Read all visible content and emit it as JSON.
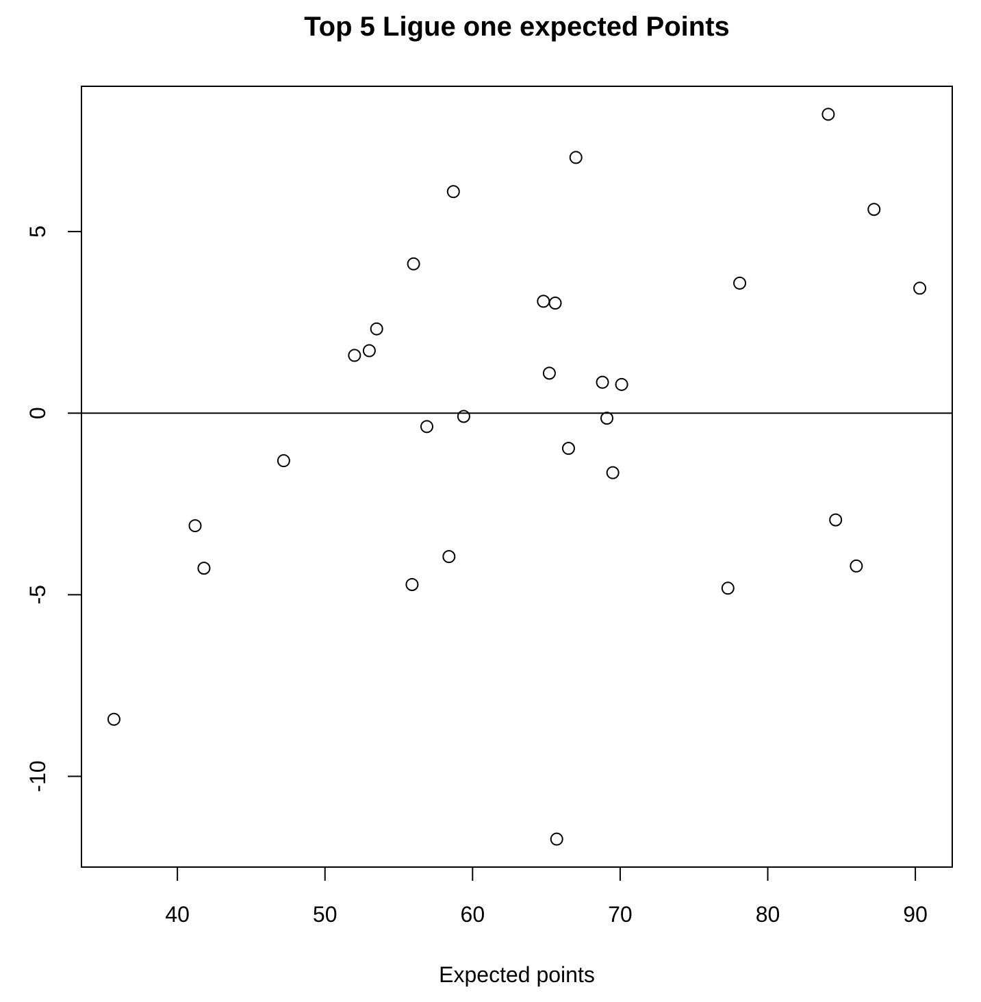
{
  "chart_data": {
    "type": "scatter",
    "title": "Top 5 Ligue one expected Points",
    "xlabel": "Expected points",
    "ylabel": "",
    "xlim": [
      33.5,
      92.5
    ],
    "ylim": [
      -12.5,
      9
    ],
    "xticks": [
      40,
      50,
      60,
      70,
      80,
      90
    ],
    "yticks": [
      -10,
      -5,
      0,
      5
    ],
    "hline": 0,
    "grid": false,
    "legend": "none",
    "points": [
      {
        "x": 35.7,
        "y": -8.43
      },
      {
        "x": 41.2,
        "y": -3.1
      },
      {
        "x": 41.8,
        "y": -4.27
      },
      {
        "x": 47.2,
        "y": -1.31
      },
      {
        "x": 52.0,
        "y": 1.59
      },
      {
        "x": 53.0,
        "y": 1.72
      },
      {
        "x": 53.5,
        "y": 2.32
      },
      {
        "x": 55.9,
        "y": -4.72
      },
      {
        "x": 56.0,
        "y": 4.11
      },
      {
        "x": 56.9,
        "y": -0.37
      },
      {
        "x": 58.4,
        "y": -3.95
      },
      {
        "x": 58.7,
        "y": 6.1
      },
      {
        "x": 59.4,
        "y": -0.09
      },
      {
        "x": 64.8,
        "y": 3.08
      },
      {
        "x": 65.2,
        "y": 1.1
      },
      {
        "x": 65.6,
        "y": 3.03
      },
      {
        "x": 65.7,
        "y": -11.73
      },
      {
        "x": 66.5,
        "y": -0.97
      },
      {
        "x": 67.0,
        "y": 7.04
      },
      {
        "x": 68.8,
        "y": 0.85
      },
      {
        "x": 69.1,
        "y": -0.14
      },
      {
        "x": 69.5,
        "y": -1.64
      },
      {
        "x": 70.1,
        "y": 0.79
      },
      {
        "x": 77.3,
        "y": -4.82
      },
      {
        "x": 78.1,
        "y": 3.58
      },
      {
        "x": 84.1,
        "y": 8.23
      },
      {
        "x": 84.6,
        "y": -2.94
      },
      {
        "x": 86.0,
        "y": -4.21
      },
      {
        "x": 87.2,
        "y": 5.61
      },
      {
        "x": 90.3,
        "y": 3.44
      }
    ]
  }
}
